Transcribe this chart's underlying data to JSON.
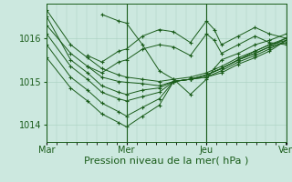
{
  "bg_color": "#cce8df",
  "line_color": "#1a5c1a",
  "grid_color": "#a8cfc0",
  "axis_color": "#1a5c1a",
  "xlabel": "Pression niveau de la mer( hPa )",
  "xlabel_fontsize": 8,
  "tick_fontsize": 7,
  "ylim": [
    1013.6,
    1016.8
  ],
  "yticks": [
    1014,
    1015,
    1016
  ],
  "xtick_positions": [
    0.0,
    0.333,
    0.667,
    1.0
  ],
  "xtick_labels": [
    "Mar",
    "Mer",
    "Jeu",
    "Ven"
  ],
  "series": [
    [
      0.0,
      1016.65,
      0.1,
      1015.85,
      0.17,
      1015.55,
      0.23,
      1015.3,
      0.3,
      1015.15,
      0.333,
      1015.1,
      0.4,
      1015.05,
      0.47,
      1015.0,
      0.53,
      1015.05,
      0.6,
      1015.1,
      0.667,
      1015.2,
      0.73,
      1015.35,
      0.8,
      1015.55,
      0.87,
      1015.7,
      0.93,
      1015.85,
      1.0,
      1015.95
    ],
    [
      0.0,
      1016.3,
      0.1,
      1015.65,
      0.17,
      1015.35,
      0.23,
      1015.1,
      0.3,
      1015.0,
      0.333,
      1014.98,
      0.4,
      1014.95,
      0.47,
      1014.9,
      0.53,
      1015.0,
      0.6,
      1015.05,
      0.667,
      1015.15,
      0.73,
      1015.3,
      0.8,
      1015.5,
      0.87,
      1015.65,
      0.93,
      1015.8,
      1.0,
      1015.9
    ],
    [
      0.0,
      1016.5,
      0.1,
      1015.5,
      0.17,
      1015.2,
      0.23,
      1014.9,
      0.3,
      1014.75,
      0.333,
      1014.7,
      0.4,
      1014.8,
      0.47,
      1014.85,
      0.53,
      1015.0,
      0.6,
      1015.05,
      0.667,
      1015.15,
      0.73,
      1015.3,
      0.8,
      1015.5,
      0.87,
      1015.7,
      0.93,
      1015.85,
      1.0,
      1016.0
    ],
    [
      0.0,
      1016.1,
      0.1,
      1015.35,
      0.17,
      1015.05,
      0.23,
      1014.75,
      0.3,
      1014.6,
      0.333,
      1014.55,
      0.4,
      1014.65,
      0.47,
      1014.75,
      0.53,
      1015.0,
      0.6,
      1015.05,
      0.667,
      1015.15,
      0.73,
      1015.3,
      0.8,
      1015.5,
      0.87,
      1015.65,
      0.93,
      1015.8,
      1.0,
      1016.0
    ],
    [
      0.0,
      1015.85,
      0.1,
      1015.1,
      0.17,
      1014.8,
      0.23,
      1014.5,
      0.3,
      1014.3,
      0.333,
      1014.2,
      0.4,
      1014.4,
      0.47,
      1014.6,
      0.53,
      1015.0,
      0.6,
      1015.05,
      0.667,
      1015.1,
      0.73,
      1015.25,
      0.8,
      1015.45,
      0.87,
      1015.6,
      0.93,
      1015.75,
      1.0,
      1015.95
    ],
    [
      0.0,
      1015.55,
      0.1,
      1014.85,
      0.17,
      1014.55,
      0.23,
      1014.25,
      0.3,
      1014.05,
      0.333,
      1013.95,
      0.4,
      1014.2,
      0.47,
      1014.45,
      0.53,
      1015.0,
      0.6,
      1015.05,
      0.667,
      1015.1,
      0.73,
      1015.2,
      0.8,
      1015.4,
      0.87,
      1015.55,
      0.93,
      1015.7,
      1.0,
      1015.95
    ],
    [
      0.17,
      1015.6,
      0.23,
      1015.45,
      0.3,
      1015.7,
      0.333,
      1015.75,
      0.4,
      1016.05,
      0.47,
      1016.2,
      0.53,
      1016.15,
      0.6,
      1015.9,
      0.667,
      1016.4,
      0.7,
      1016.2,
      0.73,
      1015.85,
      0.8,
      1016.05,
      0.87,
      1016.25,
      0.93,
      1016.1,
      1.0,
      1016.0
    ],
    [
      0.17,
      1015.35,
      0.23,
      1015.2,
      0.3,
      1015.45,
      0.333,
      1015.5,
      0.4,
      1015.75,
      0.47,
      1015.85,
      0.53,
      1015.8,
      0.6,
      1015.6,
      0.667,
      1016.1,
      0.7,
      1015.95,
      0.73,
      1015.65,
      0.8,
      1015.85,
      0.87,
      1016.05,
      0.93,
      1015.9,
      1.0,
      1015.85
    ],
    [
      0.23,
      1016.55,
      0.3,
      1016.4,
      0.333,
      1016.35,
      0.4,
      1015.85,
      0.47,
      1015.25,
      0.53,
      1015.05,
      0.6,
      1014.7,
      0.667,
      1015.05,
      0.7,
      1015.3,
      0.73,
      1015.5,
      0.8,
      1015.65,
      0.87,
      1015.85,
      0.93,
      1015.95,
      1.0,
      1016.1
    ]
  ]
}
